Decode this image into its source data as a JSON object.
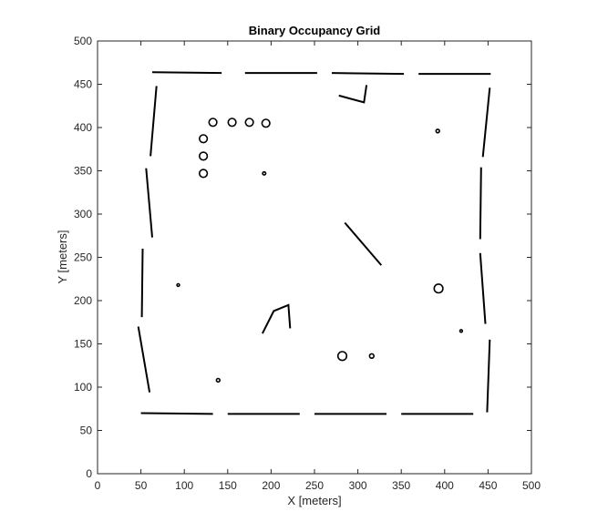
{
  "colors": {
    "background": "#ffffff",
    "axes": "#262626",
    "occupied": "#000000"
  },
  "chart_data": {
    "type": "heatmap",
    "subtype": "binary-occupancy-grid",
    "title": "Binary Occupancy Grid",
    "xlabel": "X [meters]",
    "ylabel": "Y [meters]",
    "xlim": [
      0,
      500
    ],
    "ylim": [
      0,
      500
    ],
    "xticks": [
      0,
      50,
      100,
      150,
      200,
      250,
      300,
      350,
      400,
      450,
      500
    ],
    "yticks": [
      0,
      50,
      100,
      150,
      200,
      250,
      300,
      350,
      400,
      450,
      500
    ],
    "grid": false,
    "legend": "none",
    "cell_values": {
      "occupied": 1,
      "free": 0
    },
    "occupied_walls": [
      {
        "name": "top-wall-1",
        "points": [
          [
            63,
            464
          ],
          [
            143,
            463
          ]
        ]
      },
      {
        "name": "top-wall-2",
        "points": [
          [
            170,
            463
          ],
          [
            253,
            463
          ]
        ]
      },
      {
        "name": "top-wall-3",
        "points": [
          [
            270,
            463
          ],
          [
            353,
            462
          ]
        ]
      },
      {
        "name": "top-wall-4",
        "points": [
          [
            370,
            462
          ],
          [
            453,
            462
          ]
        ]
      },
      {
        "name": "bottom-wall-1",
        "points": [
          [
            50,
            70
          ],
          [
            133,
            69
          ]
        ]
      },
      {
        "name": "bottom-wall-2",
        "points": [
          [
            150,
            69
          ],
          [
            233,
            69
          ]
        ]
      },
      {
        "name": "bottom-wall-3",
        "points": [
          [
            250,
            69
          ],
          [
            333,
            69
          ]
        ]
      },
      {
        "name": "bottom-wall-4",
        "points": [
          [
            350,
            69
          ],
          [
            433,
            69
          ]
        ]
      },
      {
        "name": "left-wall-1",
        "points": [
          [
            68,
            448
          ],
          [
            61,
            367
          ]
        ]
      },
      {
        "name": "left-wall-2",
        "points": [
          [
            56,
            353
          ],
          [
            63,
            273
          ]
        ]
      },
      {
        "name": "left-wall-3",
        "points": [
          [
            52,
            260
          ],
          [
            51,
            181
          ]
        ]
      },
      {
        "name": "left-wall-4",
        "points": [
          [
            47,
            170
          ],
          [
            60,
            94
          ]
        ]
      },
      {
        "name": "right-wall-1",
        "points": [
          [
            452,
            446
          ],
          [
            444,
            366
          ]
        ]
      },
      {
        "name": "right-wall-2",
        "points": [
          [
            442,
            354
          ],
          [
            441,
            271
          ]
        ]
      },
      {
        "name": "right-wall-3",
        "points": [
          [
            441,
            255
          ],
          [
            447,
            173
          ]
        ]
      },
      {
        "name": "right-wall-4",
        "points": [
          [
            452,
            155
          ],
          [
            449,
            71
          ]
        ]
      },
      {
        "name": "inner-wall-top",
        "points": [
          [
            278,
            437
          ],
          [
            307,
            429
          ],
          [
            310,
            449
          ]
        ]
      },
      {
        "name": "inner-wall-angled",
        "points": [
          [
            285,
            290
          ],
          [
            327,
            241
          ]
        ]
      },
      {
        "name": "inner-wall-small",
        "points": [
          [
            190,
            162
          ],
          [
            203,
            188
          ],
          [
            220,
            195
          ],
          [
            222,
            168
          ]
        ]
      }
    ],
    "occupied_circles": [
      {
        "name": "circle-1",
        "x": 133,
        "y": 406,
        "r": 4.5
      },
      {
        "name": "circle-2",
        "x": 155,
        "y": 406,
        "r": 4.5
      },
      {
        "name": "circle-3",
        "x": 175,
        "y": 406,
        "r": 4.5
      },
      {
        "name": "circle-4",
        "x": 194,
        "y": 405,
        "r": 4.5
      },
      {
        "name": "circle-5",
        "x": 122,
        "y": 387,
        "r": 4.5
      },
      {
        "name": "circle-6",
        "x": 122,
        "y": 367,
        "r": 4.5
      },
      {
        "name": "circle-7",
        "x": 122,
        "y": 347,
        "r": 4.5
      },
      {
        "name": "circle-8",
        "x": 192,
        "y": 347,
        "r": 1.8
      },
      {
        "name": "circle-9",
        "x": 392,
        "y": 396,
        "r": 2
      },
      {
        "name": "circle-10",
        "x": 393,
        "y": 214,
        "r": 5
      },
      {
        "name": "circle-11",
        "x": 282,
        "y": 136,
        "r": 5
      },
      {
        "name": "circle-12",
        "x": 316,
        "y": 136,
        "r": 2.5
      },
      {
        "name": "circle-13",
        "x": 419,
        "y": 165,
        "r": 1.5
      },
      {
        "name": "circle-14",
        "x": 93,
        "y": 218,
        "r": 1.5
      },
      {
        "name": "circle-15",
        "x": 139,
        "y": 108,
        "r": 2
      }
    ]
  }
}
